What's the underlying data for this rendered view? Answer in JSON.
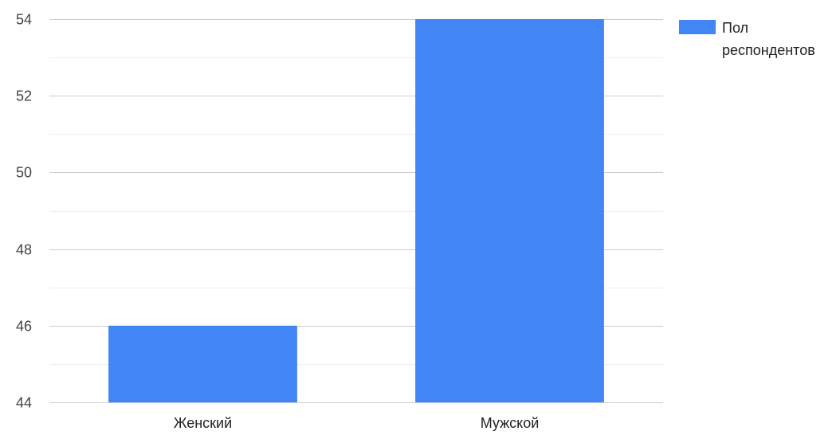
{
  "chart_data": {
    "type": "bar",
    "categories": [
      "Женский",
      "Мужской"
    ],
    "series": [
      {
        "name": "Пол респондентов",
        "values": [
          46,
          54
        ],
        "color": "#4285f4"
      }
    ],
    "legend_lines": [
      "Пол",
      "респондентов"
    ],
    "ylim": [
      44,
      54
    ],
    "y_ticks": [
      44,
      46,
      48,
      50,
      52,
      54
    ],
    "grid": true,
    "legend_position": "right",
    "title": "",
    "xlabel": "",
    "ylabel": ""
  }
}
